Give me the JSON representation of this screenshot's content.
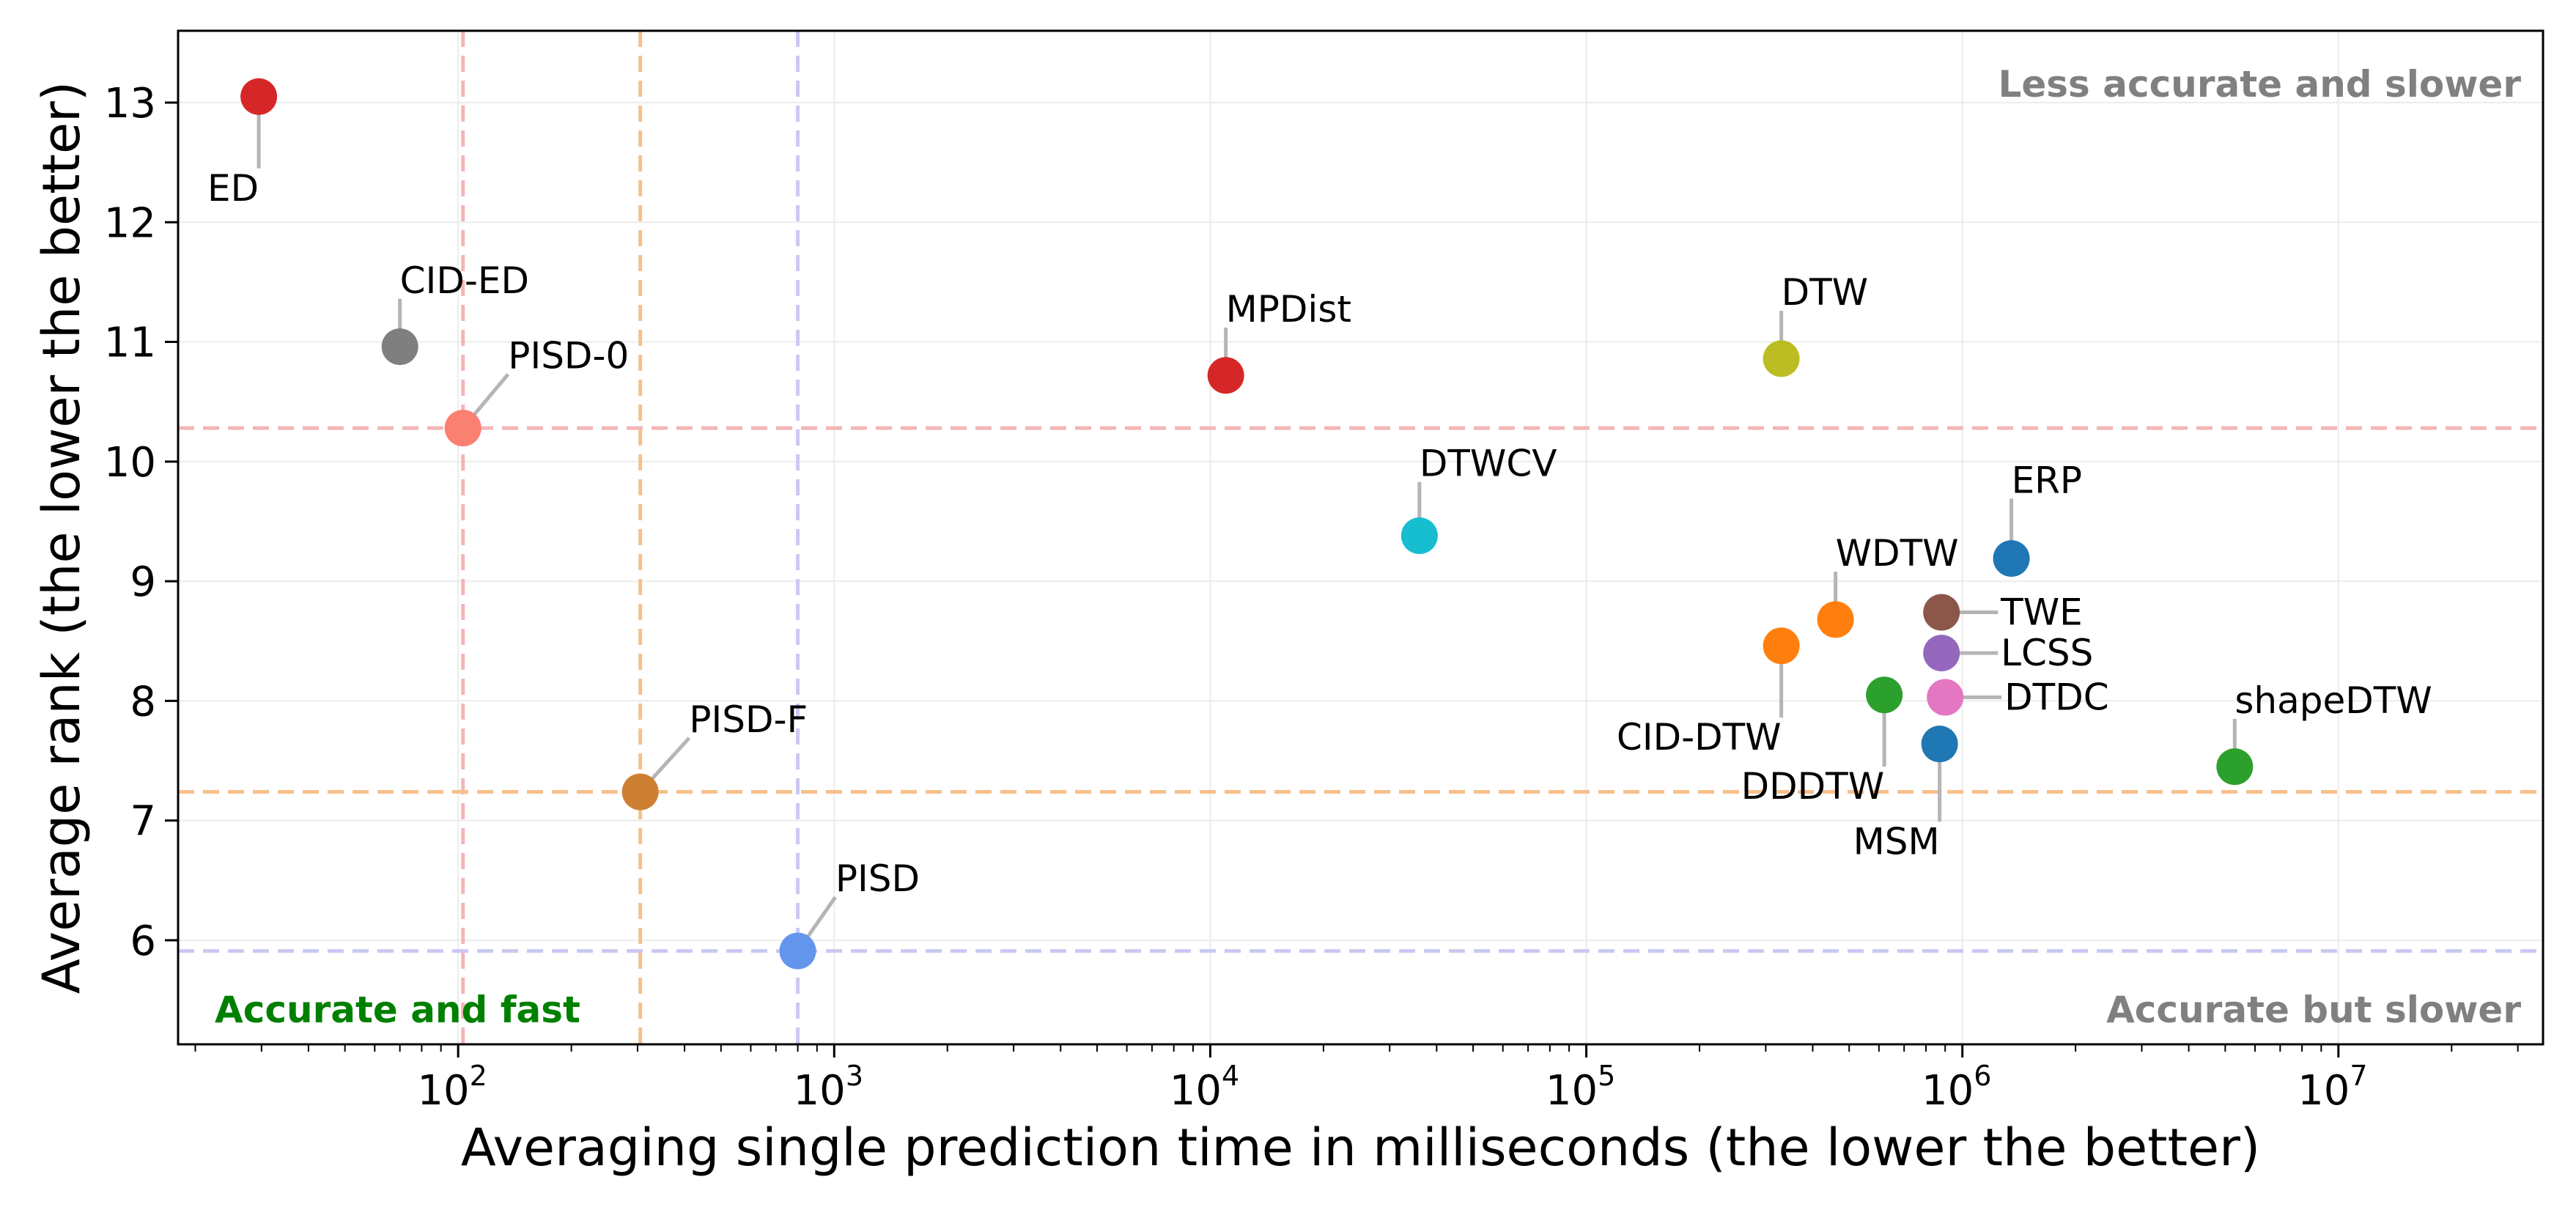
{
  "chart_data": {
    "type": "scatter",
    "title": "",
    "xlabel": "Averaging single prediction time in milliseconds (the lower the better)",
    "ylabel": "Average rank (the lower the better)",
    "xscale": "log",
    "xlim": [
      18,
      35000000
    ],
    "ylim": [
      5.13,
      13.6
    ],
    "xticks": [
      {
        "value": 100,
        "base": "10",
        "exp": "2"
      },
      {
        "value": 1000,
        "base": "10",
        "exp": "3"
      },
      {
        "value": 10000,
        "base": "10",
        "exp": "4"
      },
      {
        "value": 100000,
        "base": "10",
        "exp": "5"
      },
      {
        "value": 1000000,
        "base": "10",
        "exp": "6"
      },
      {
        "value": 10000000,
        "base": "10",
        "exp": "7"
      }
    ],
    "yticks": [
      {
        "value": 6,
        "label": "6"
      },
      {
        "value": 7,
        "label": "7"
      },
      {
        "value": 8,
        "label": "8"
      },
      {
        "value": 9,
        "label": "9"
      },
      {
        "value": 10,
        "label": "10"
      },
      {
        "value": 11,
        "label": "11"
      },
      {
        "value": 12,
        "label": "12"
      },
      {
        "value": 13,
        "label": "13"
      }
    ],
    "grid": true,
    "reference_lines": [
      {
        "orientation": "vertical",
        "x": 103,
        "color": "#f4b6b6"
      },
      {
        "orientation": "horizontal",
        "y": 10.28,
        "color": "#f4b6b6"
      },
      {
        "orientation": "vertical",
        "x": 305,
        "color": "#f7c08c"
      },
      {
        "orientation": "horizontal",
        "y": 7.24,
        "color": "#f7c08c"
      },
      {
        "orientation": "vertical",
        "x": 800,
        "color": "#c9c9f2"
      },
      {
        "orientation": "horizontal",
        "y": 5.91,
        "color": "#c9c9f2"
      }
    ],
    "points": [
      {
        "name": "ED",
        "x": 29.5,
        "y": 13.05,
        "color": "#d62728",
        "label_dx": 0,
        "label_dy": -0.6
      },
      {
        "name": "CID-ED",
        "x": 70,
        "y": 10.96,
        "color": "#7f7f7f",
        "label_dx": 0,
        "label_dy": 0.4
      },
      {
        "name": "PISD-0",
        "x": 103,
        "y": 10.28,
        "color": "#fa8072",
        "label_dx": 0.12,
        "label_dy": 0.45
      },
      {
        "name": "PISD-F",
        "x": 305,
        "y": 7.24,
        "color": "#cd7f32",
        "label_dx": 0.13,
        "label_dy": 0.45
      },
      {
        "name": "PISD",
        "x": 800,
        "y": 5.91,
        "color": "#6495ed",
        "label_dx": 0.1,
        "label_dy": 0.45
      },
      {
        "name": "MPDist",
        "x": 11000,
        "y": 10.72,
        "color": "#d62728",
        "label_dx": 0,
        "label_dy": 0.4
      },
      {
        "name": "DTWCV",
        "x": 36000,
        "y": 9.38,
        "color": "#17becf",
        "label_dx": 0,
        "label_dy": 0.45
      },
      {
        "name": "DTW",
        "x": 330000,
        "y": 10.86,
        "color": "#bcbd22",
        "label_dx": 0,
        "label_dy": 0.4
      },
      {
        "name": "CID-DTW",
        "x": 330000,
        "y": 8.46,
        "color": "#ff7f0e",
        "label_dx": 0,
        "label_dy": -0.6
      },
      {
        "name": "WDTW",
        "x": 460000,
        "y": 8.68,
        "color": "#ff7f0e",
        "label_dx": 0,
        "label_dy": 0.4
      },
      {
        "name": "DDDTW",
        "x": 620000,
        "y": 8.05,
        "color": "#2ca02c",
        "label_dx": 0,
        "label_dy": -0.6
      },
      {
        "name": "MSM",
        "x": 870000,
        "y": 7.64,
        "color": "#1f77b4",
        "label_dx": 0,
        "label_dy": -0.65
      },
      {
        "name": "TWE",
        "x": 880000,
        "y": 8.74,
        "color": "#8c564b",
        "label_dx": 0.15,
        "label_dy": 0
      },
      {
        "name": "LCSS",
        "x": 880000,
        "y": 8.4,
        "color": "#9467bd",
        "label_dx": 0.15,
        "label_dy": 0
      },
      {
        "name": "DTDC",
        "x": 900000,
        "y": 8.03,
        "color": "#e377c2",
        "label_dx": 0.15,
        "label_dy": 0
      },
      {
        "name": "ERP",
        "x": 1350000,
        "y": 9.19,
        "color": "#1f77b4",
        "label_dx": 0,
        "label_dy": 0.5
      },
      {
        "name": "shapeDTW",
        "x": 5300000,
        "y": 7.45,
        "color": "#2ca02c",
        "label_dx": 0,
        "label_dy": 0.4
      }
    ],
    "annotations": [
      {
        "text": "Less accurate and slower",
        "position": "top-right",
        "color": "#808080"
      },
      {
        "text": "Accurate and fast",
        "position": "bottom-left",
        "color": "#008000"
      },
      {
        "text": "Accurate but slower",
        "position": "bottom-right",
        "color": "#808080"
      }
    ]
  }
}
